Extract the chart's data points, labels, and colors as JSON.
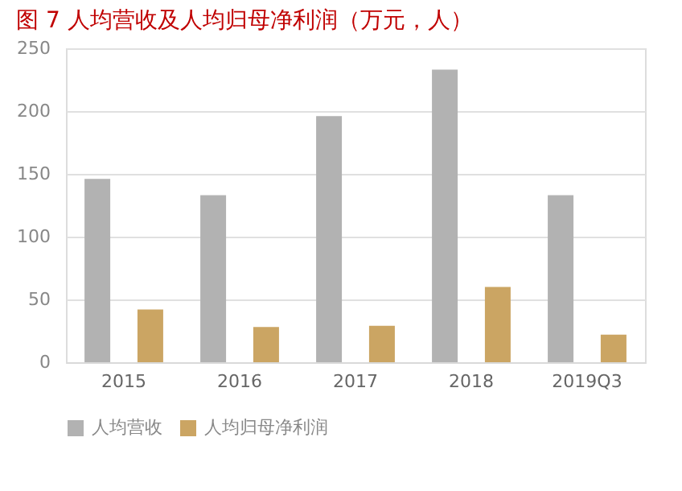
{
  "chart_data": {
    "type": "bar",
    "title": "图 7 人均营收及人均归母净利润（万元，人）",
    "categories": [
      "2015",
      "2016",
      "2017",
      "2018",
      "2019Q3"
    ],
    "series": [
      {
        "name": "人均营收",
        "color": "#b2b2b2",
        "values": [
          146,
          133,
          196,
          233,
          133
        ]
      },
      {
        "name": "人均归母净利润",
        "color": "#cba563",
        "values": [
          42,
          28,
          29,
          60,
          22
        ]
      }
    ],
    "ylim": [
      0,
      250
    ],
    "yticks": [
      0,
      50,
      100,
      150,
      200,
      250
    ],
    "grid": "y",
    "legend": "bottom"
  }
}
